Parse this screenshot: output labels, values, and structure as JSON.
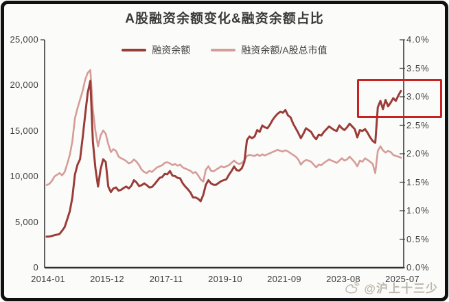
{
  "title": "A股融资余额变化&融资余额占比",
  "legend": {
    "position": "top",
    "items": [
      {
        "label": "融资余额",
        "color": "#9a3d39"
      },
      {
        "label": "融资余额/A股总市值",
        "color": "#d59c98"
      }
    ]
  },
  "axes": {
    "left_ticks": [
      "25,000",
      "20,000",
      "15,000",
      "10,000",
      "5,000",
      "0"
    ],
    "right_ticks": [
      "4.0%",
      "3.5%",
      "3.0%",
      "2.5%",
      "2.0%",
      "1.5%",
      "1.0%",
      "0.5%",
      "0.0%"
    ],
    "x_ticks": [
      "2014-01",
      "2015-12",
      "2017-11",
      "2019-10",
      "2021-09",
      "2023-08",
      "2025-07"
    ]
  },
  "annotation_box": {
    "color": "#c62322",
    "x_from": "2024-02",
    "right_axis_range": [
      2.69,
      3.31
    ]
  },
  "watermark": {
    "icon": "weibo-icon",
    "text": "@沪上十三少"
  },
  "chart_data": {
    "type": "line",
    "title": "A股融资余额变化&融资余额占比",
    "x": {
      "start": "2014-01",
      "end": "2025-07",
      "interval": "month",
      "count": 139,
      "tick_labels": [
        "2014-01",
        "2015-12",
        "2017-11",
        "2019-10",
        "2021-09",
        "2023-08",
        "2025-07"
      ]
    },
    "ylim_left": [
      0,
      25000
    ],
    "ylim_right": [
      0,
      4
    ],
    "grid": false,
    "legend_position": "top",
    "series": [
      {
        "name": "融资余额",
        "axis": "left",
        "unit": "亿元",
        "color": "#9a3d39",
        "values": [
          3400,
          3420,
          3480,
          3560,
          3620,
          3700,
          4050,
          4450,
          5300,
          6200,
          7700,
          10200,
          11300,
          11900,
          14200,
          16800,
          19200,
          20500,
          13800,
          10900,
          8900,
          10800,
          11900,
          11600,
          8900,
          8300,
          8700,
          8800,
          8450,
          8550,
          8750,
          8900,
          8700,
          9000,
          9600,
          9350,
          8950,
          9050,
          9250,
          9050,
          8800,
          8850,
          9150,
          9500,
          9850,
          9950,
          10300,
          10250,
          10600,
          10100,
          10050,
          9850,
          9800,
          9250,
          8900,
          8600,
          8250,
          7700,
          7700,
          7550,
          7300,
          8000,
          9100,
          9600,
          9250,
          9100,
          9100,
          9300,
          9500,
          9600,
          9700,
          10200,
          10600,
          11100,
          10700,
          10650,
          10900,
          11600,
          14000,
          14400,
          14200,
          14400,
          15100,
          14900,
          15600,
          15400,
          15300,
          15700,
          16200,
          16600,
          16900,
          17100,
          17000,
          17300,
          16700,
          16500,
          15800,
          15300,
          14800,
          14200,
          14700,
          15300,
          15100,
          14900,
          14400,
          14100,
          14600,
          14500,
          14900,
          15200,
          15500,
          15300,
          15100,
          15000,
          15600,
          15300,
          15100,
          15400,
          15800,
          15500,
          15200,
          14300,
          15100,
          15000,
          15200,
          14800,
          14300,
          13900,
          13700,
          17600,
          18300,
          17400,
          18400,
          17700,
          18100,
          18600,
          18300,
          18900,
          19400
        ]
      },
      {
        "name": "融资余额/A股总市值",
        "axis": "right",
        "unit": "%",
        "color": "#d59c98",
        "values": [
          1.45,
          1.47,
          1.52,
          1.6,
          1.63,
          1.66,
          1.62,
          1.68,
          1.82,
          1.98,
          2.22,
          2.62,
          2.8,
          2.95,
          3.1,
          3.3,
          3.42,
          3.47,
          2.78,
          2.4,
          2.13,
          2.32,
          2.41,
          2.35,
          2.17,
          2.03,
          2.08,
          2.05,
          1.95,
          1.92,
          1.9,
          1.87,
          1.83,
          1.85,
          1.9,
          1.86,
          1.8,
          1.72,
          1.68,
          1.66,
          1.7,
          1.68,
          1.72,
          1.76,
          1.78,
          1.8,
          1.84,
          1.85,
          1.83,
          1.8,
          1.82,
          1.79,
          1.81,
          1.76,
          1.74,
          1.72,
          1.7,
          1.66,
          1.68,
          1.62,
          1.55,
          1.51,
          1.72,
          1.78,
          1.7,
          1.69,
          1.72,
          1.75,
          1.78,
          1.76,
          1.78,
          1.8,
          1.84,
          1.88,
          1.84,
          1.82,
          1.84,
          1.88,
          1.96,
          1.98,
          1.97,
          1.96,
          1.99,
          1.96,
          1.99,
          1.97,
          1.99,
          2.01,
          2.03,
          2.05,
          2.07,
          2.05,
          2.04,
          2.06,
          2.04,
          2.01,
          1.98,
          1.95,
          1.9,
          1.81,
          1.86,
          1.89,
          1.88,
          1.86,
          1.81,
          1.76,
          1.81,
          1.8,
          1.84,
          1.87,
          1.9,
          1.88,
          1.86,
          1.84,
          1.88,
          1.92,
          1.88,
          1.9,
          1.95,
          1.9,
          1.85,
          1.78,
          1.88,
          1.86,
          1.92,
          1.89,
          1.86,
          1.82,
          1.66,
          2.05,
          2.13,
          2.06,
          2.02,
          2.05,
          2.03,
          1.98,
          1.96,
          1.95,
          1.93
        ]
      }
    ],
    "highlight_box": {
      "x_from": "2024-02",
      "right_axis_range": [
        2.69,
        3.31
      ],
      "color": "#c62322"
    }
  }
}
